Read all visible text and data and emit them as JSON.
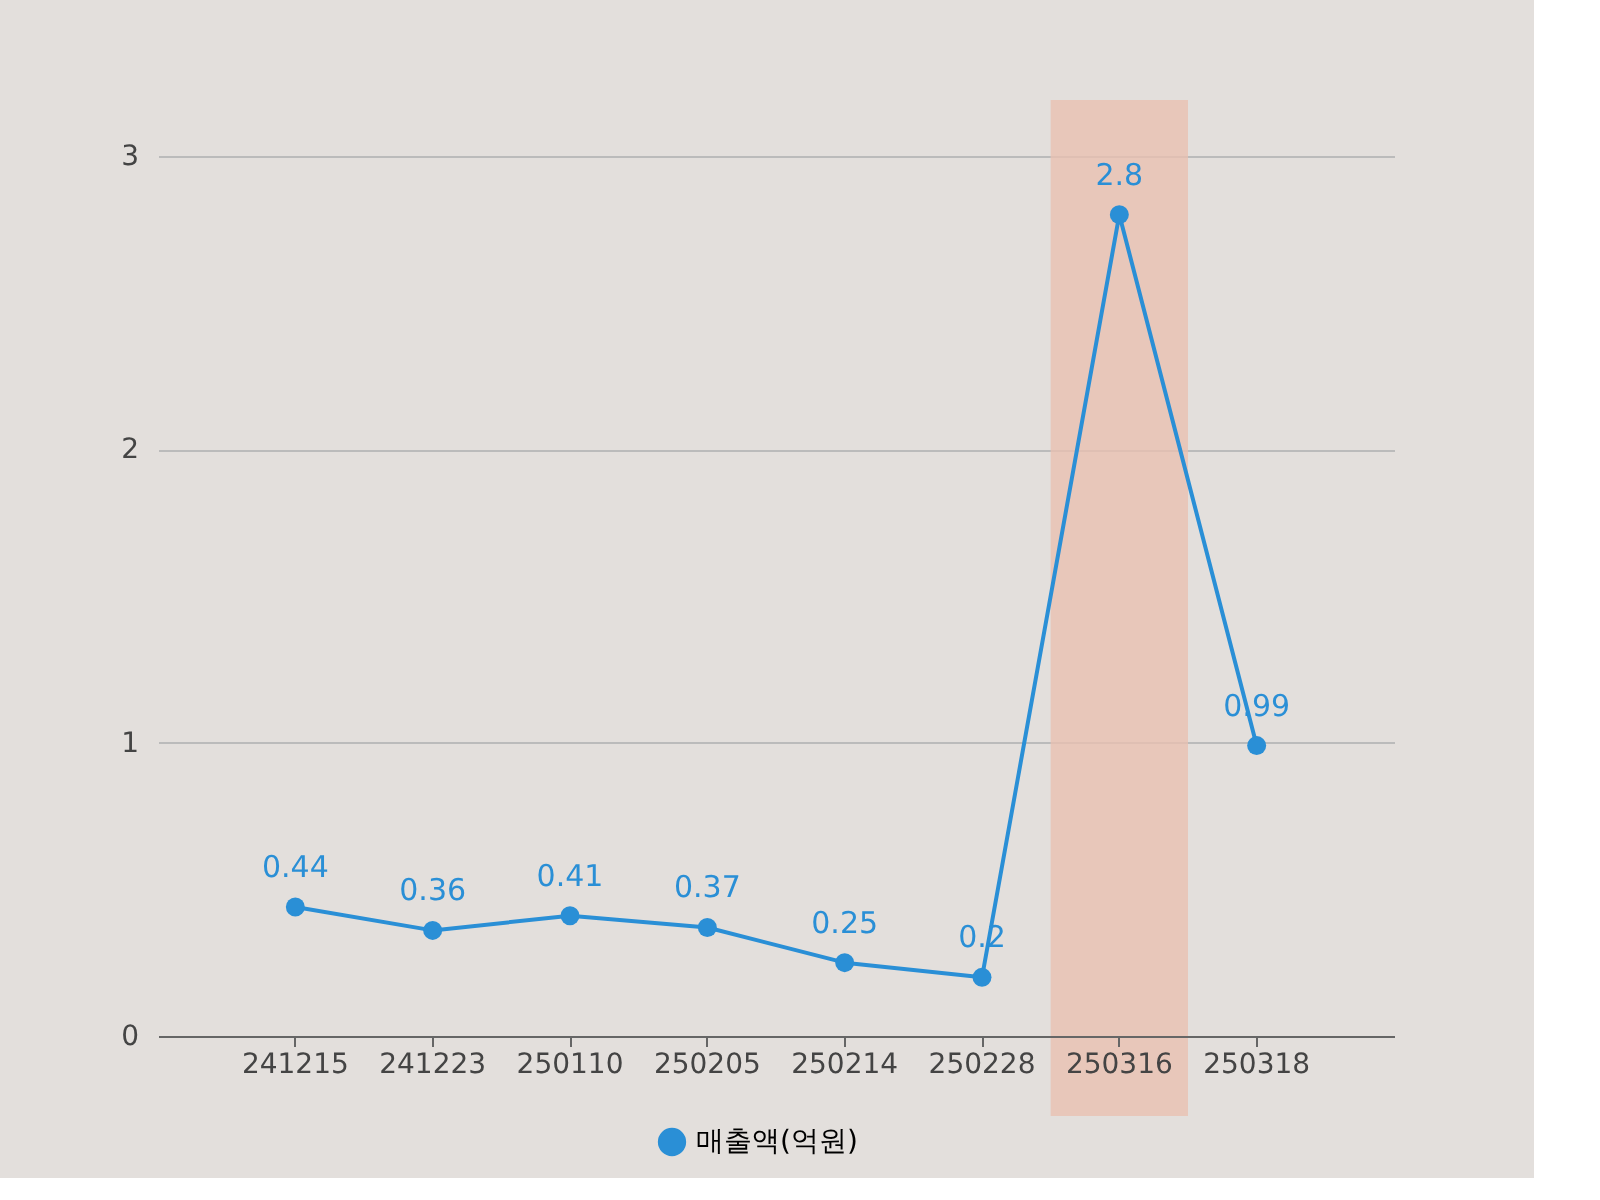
{
  "chart_data": {
    "type": "line",
    "categories": [
      "241215",
      "241223",
      "250110",
      "250205",
      "250214",
      "250228",
      "250316",
      "250318"
    ],
    "series": [
      {
        "name": "매출액(억원)",
        "color": "#2a8fd6",
        "values": [
          0.44,
          0.36,
          0.41,
          0.37,
          0.25,
          0.2,
          2.8,
          0.99
        ]
      }
    ],
    "ylim": [
      0,
      3
    ],
    "yticks": [
      0,
      1,
      2,
      3
    ],
    "bands": [
      {
        "axis": "x",
        "from": "250316",
        "to": "250316",
        "label": null,
        "color": "#e9c0b2"
      }
    ],
    "data_labels": true,
    "grid": "y",
    "legend": "bottom",
    "marker": "circle",
    "line_style": "solid"
  }
}
